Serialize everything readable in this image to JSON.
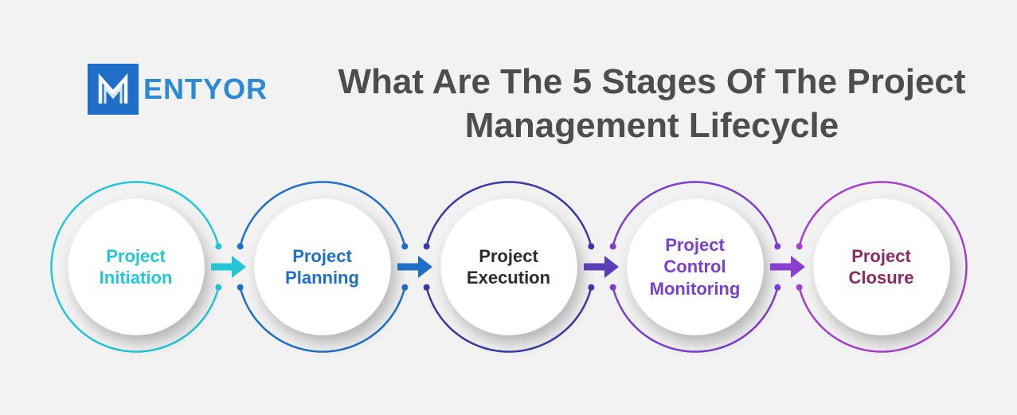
{
  "logo": {
    "text": "ENTYOR",
    "mark_bg": "#1f6fc9",
    "text_color": "#2a8ad8"
  },
  "title": "What Are The 5 Stages Of The Project\nManagement Lifecycle",
  "title_color": "#4d4d4d",
  "title_fontsize": 44,
  "background_color": "#f2f2f2",
  "diagram": {
    "type": "flowchart",
    "stage_diameter": 220,
    "disc_diameter": 172,
    "disc_fill": "#ffffff",
    "label_fontsize": 22,
    "ring_stroke_width": 2.5,
    "connector_dot_radius": 4,
    "arrow_width": 46,
    "stages": [
      {
        "label": "Project\nInitiation",
        "ring_color": "#22c6d6",
        "text_color": "#22c6d6"
      },
      {
        "label": "Project\nPlanning",
        "ring_color": "#1f6fc9",
        "text_color": "#1f6fc9"
      },
      {
        "label": "Project\nExecution",
        "ring_color": "#3b39a8",
        "text_color": "#2c2c2c"
      },
      {
        "label": "Project\nControl\nMonitoring",
        "ring_color": "#7a3fd1",
        "text_color": "#7a3fd1"
      },
      {
        "label": "Project\nClosure",
        "ring_color": "#a63fcf",
        "text_color": "#8a2b63"
      }
    ],
    "arrows": [
      {
        "color": "#22c6d6"
      },
      {
        "color": "#1f6fc9"
      },
      {
        "color": "#5a3fb8"
      },
      {
        "color": "#8a3fd1"
      }
    ]
  }
}
